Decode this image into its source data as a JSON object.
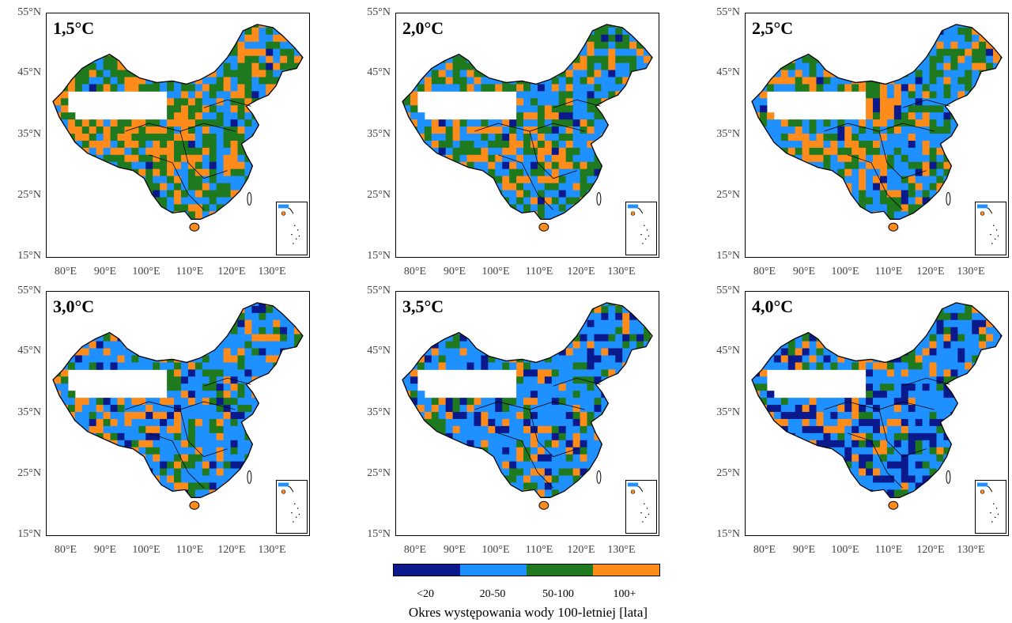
{
  "panels": [
    {
      "title": "1,5°C",
      "mix": {
        "dark": 0.02,
        "light": 0.3,
        "green": 0.4,
        "orange": 0.28
      }
    },
    {
      "title": "2,0°C",
      "mix": {
        "dark": 0.03,
        "light": 0.38,
        "green": 0.36,
        "orange": 0.23
      }
    },
    {
      "title": "2,5°C",
      "mix": {
        "dark": 0.04,
        "light": 0.45,
        "green": 0.3,
        "orange": 0.21
      }
    },
    {
      "title": "3,0°C",
      "mix": {
        "dark": 0.08,
        "light": 0.52,
        "green": 0.22,
        "orange": 0.18
      }
    },
    {
      "title": "3,5°C",
      "mix": {
        "dark": 0.14,
        "light": 0.52,
        "green": 0.18,
        "orange": 0.16
      }
    },
    {
      "title": "4,0°C",
      "mix": {
        "dark": 0.24,
        "light": 0.48,
        "green": 0.14,
        "orange": 0.14
      }
    }
  ],
  "axes": {
    "y_ticks": [
      "55°N",
      "45°N",
      "35°N",
      "25°N",
      "15°N"
    ],
    "x_ticks": [
      "80°E",
      "90°E",
      "100°E",
      "110°E",
      "120°E",
      "130°E"
    ]
  },
  "legend": {
    "title": "Okres występowania wody 100-letniej [lata]",
    "categories": [
      {
        "label": "<20",
        "color": "#0a1a8c"
      },
      {
        "label": "20-50",
        "color": "#1e90ff"
      },
      {
        "label": "50-100",
        "color": "#1f7a1f"
      },
      {
        "label": "100+",
        "color": "#ff8c1a"
      }
    ]
  }
}
